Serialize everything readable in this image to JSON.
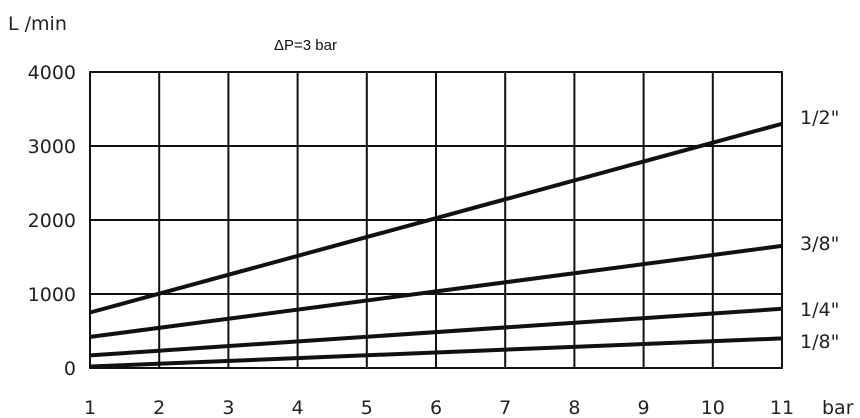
{
  "chart_data": {
    "type": "line",
    "ylabel": "L /min",
    "xlabel": "bar",
    "annotation": "ΔP=3 bar",
    "xlim": [
      1,
      11
    ],
    "ylim": [
      0,
      4000
    ],
    "x_ticks": [
      1,
      2,
      3,
      4,
      5,
      6,
      7,
      8,
      9,
      10,
      11
    ],
    "y_ticks": [
      0,
      1000,
      2000,
      3000,
      4000
    ],
    "grid": true,
    "legend": "none",
    "series": [
      {
        "name": "1/2\"",
        "x": [
          1,
          11
        ],
        "y": [
          750,
          3300
        ]
      },
      {
        "name": "3/8\"",
        "x": [
          1,
          11
        ],
        "y": [
          420,
          1650
        ]
      },
      {
        "name": "1/4\"",
        "x": [
          1,
          11
        ],
        "y": [
          170,
          800
        ]
      },
      {
        "name": "1/8\"",
        "x": [
          1,
          11
        ],
        "y": [
          20,
          400
        ]
      }
    ],
    "colors": {
      "line": "#111111",
      "grid": "#111111",
      "text": "#222222"
    }
  }
}
